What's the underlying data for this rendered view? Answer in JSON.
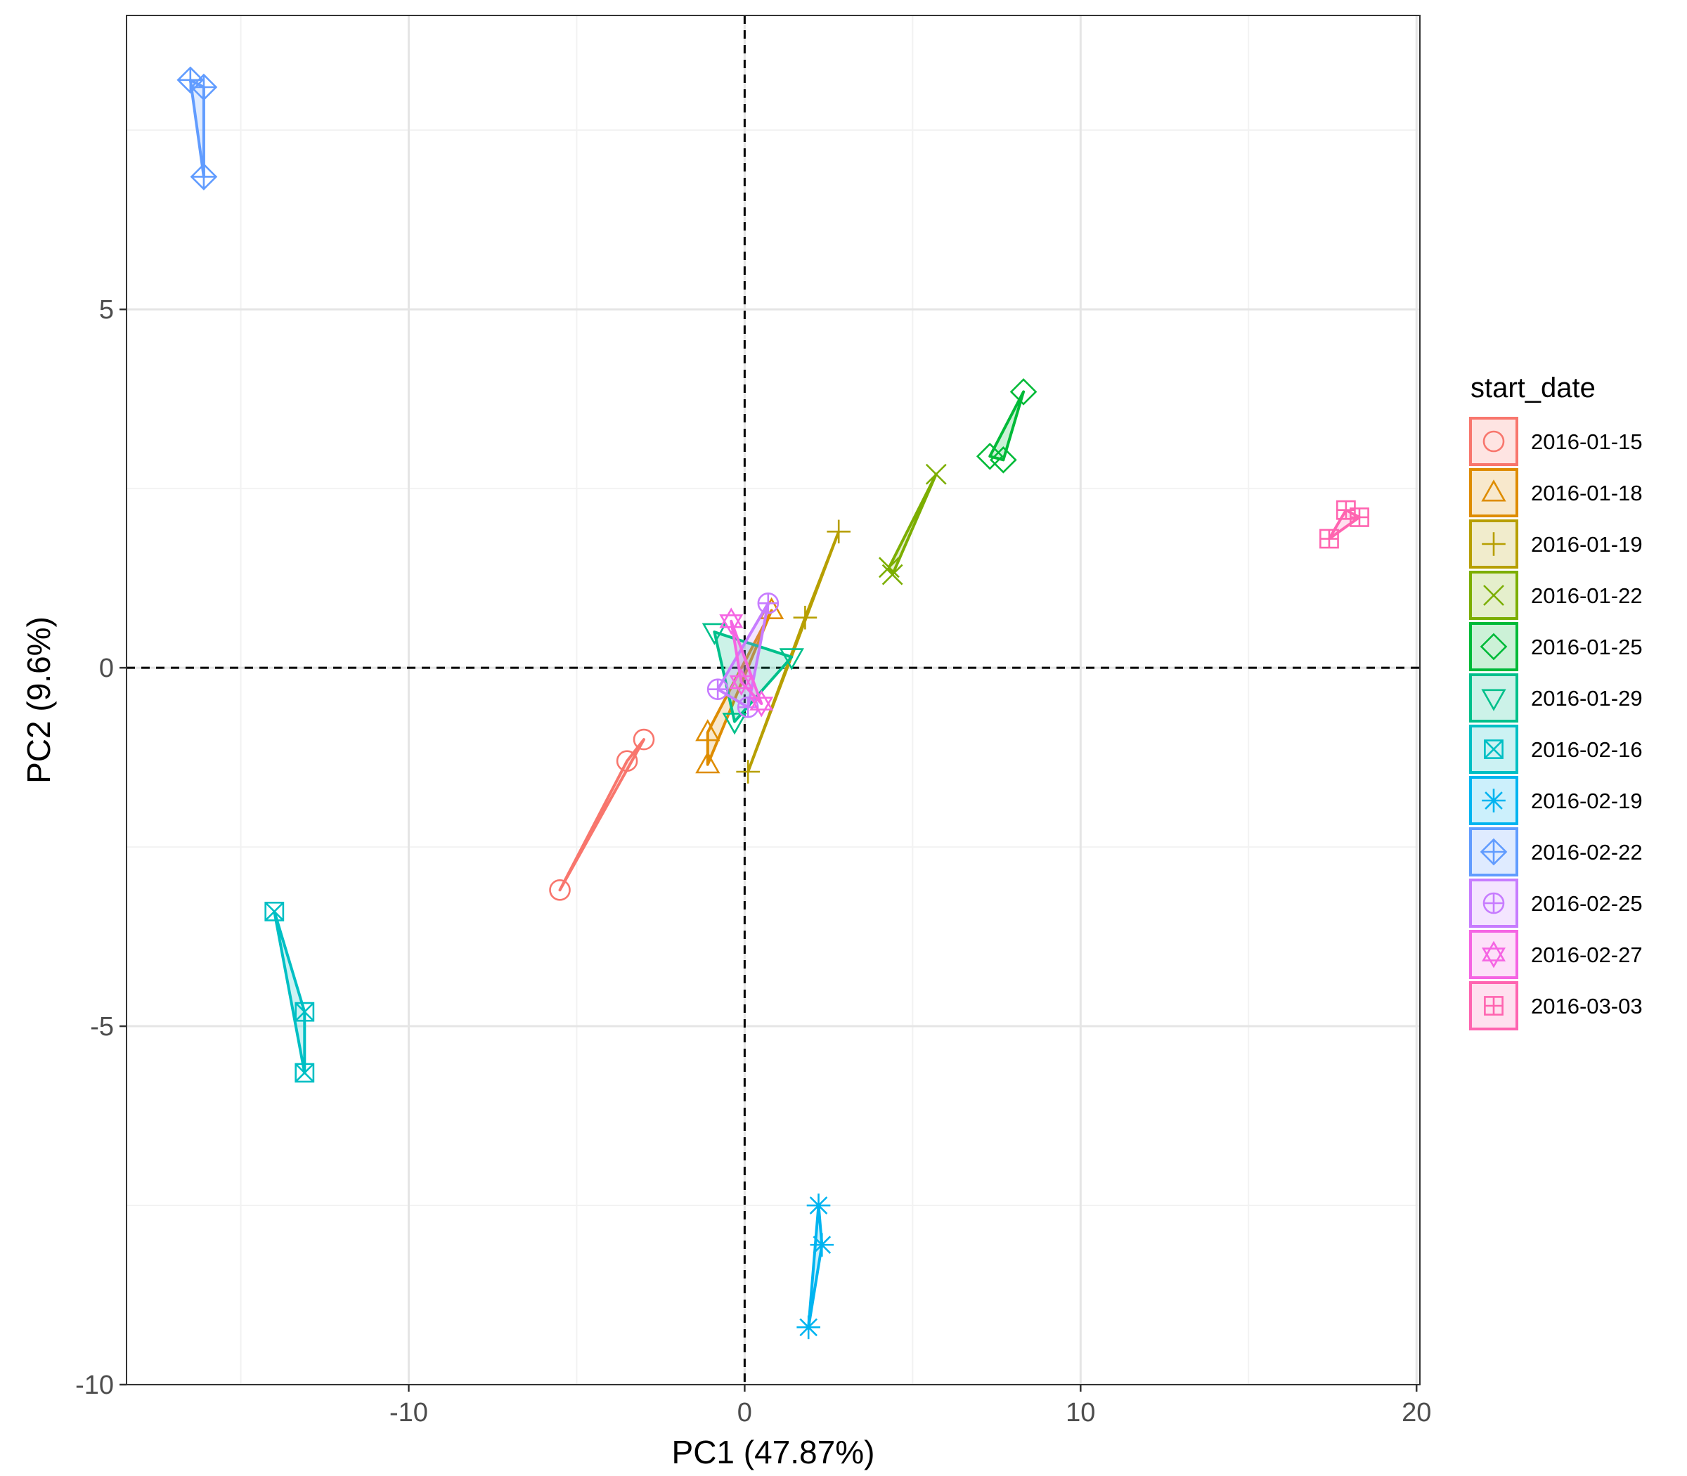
{
  "chart_data": {
    "type": "scatter",
    "title": "",
    "xlabel": "PC1 (47.87%)",
    "ylabel": "PC2 (9.6%)",
    "xlim": [
      -18.4,
      20.1
    ],
    "ylim": [
      -10.0,
      9.1
    ],
    "x_ticks": [
      -10,
      0,
      10,
      20
    ],
    "y_ticks": [
      -10,
      -5,
      0,
      5
    ],
    "grid": true,
    "reference_lines": {
      "x": 0,
      "y": 0,
      "style": "dashed"
    },
    "legend": {
      "title": "start_date",
      "position": "right"
    },
    "series": [
      {
        "name": "2016-01-15",
        "color": "#F8766D",
        "shape": "circle",
        "points": [
          [
            -3.0,
            -1.0
          ],
          [
            -3.5,
            -1.3
          ],
          [
            -5.5,
            -3.1
          ]
        ]
      },
      {
        "name": "2016-01-18",
        "color": "#DE8C00",
        "shape": "triangle-up",
        "points": [
          [
            0.8,
            0.8
          ],
          [
            -1.1,
            -0.9
          ],
          [
            -1.1,
            -1.35
          ]
        ]
      },
      {
        "name": "2016-01-19",
        "color": "#B79F00",
        "shape": "plus",
        "points": [
          [
            2.8,
            1.9
          ],
          [
            1.8,
            0.7
          ],
          [
            0.1,
            -1.45
          ]
        ]
      },
      {
        "name": "2016-01-22",
        "color": "#7CAE00",
        "shape": "cross",
        "points": [
          [
            5.7,
            2.7
          ],
          [
            4.3,
            1.4
          ],
          [
            4.4,
            1.3
          ]
        ]
      },
      {
        "name": "2016-01-25",
        "color": "#00BA38",
        "shape": "diamond",
        "points": [
          [
            8.3,
            3.85
          ],
          [
            7.3,
            2.95
          ],
          [
            7.7,
            2.9
          ]
        ]
      },
      {
        "name": "2016-01-29",
        "color": "#00C08B",
        "shape": "triangle-down",
        "points": [
          [
            -0.9,
            0.5
          ],
          [
            1.4,
            0.15
          ],
          [
            -0.3,
            -0.75
          ]
        ]
      },
      {
        "name": "2016-02-16",
        "color": "#00BFC4",
        "shape": "square-cross",
        "points": [
          [
            -14.0,
            -3.4
          ],
          [
            -13.1,
            -4.8
          ],
          [
            -13.1,
            -5.65
          ]
        ]
      },
      {
        "name": "2016-02-19",
        "color": "#00B4F0",
        "shape": "asterisk",
        "points": [
          [
            2.2,
            -7.5
          ],
          [
            2.3,
            -8.05
          ],
          [
            1.9,
            -9.2
          ]
        ]
      },
      {
        "name": "2016-02-22",
        "color": "#619CFF",
        "shape": "diamond-plus",
        "points": [
          [
            -16.5,
            8.2
          ],
          [
            -16.1,
            8.1
          ],
          [
            -16.1,
            6.85
          ]
        ]
      },
      {
        "name": "2016-02-25",
        "color": "#C77CFF",
        "shape": "circle-plus",
        "points": [
          [
            0.7,
            0.9
          ],
          [
            -0.8,
            -0.3
          ],
          [
            0.1,
            -0.55
          ]
        ]
      },
      {
        "name": "2016-02-27",
        "color": "#F564E3",
        "shape": "star-of-david",
        "points": [
          [
            -0.4,
            0.65
          ],
          [
            0.5,
            -0.5
          ],
          [
            -0.1,
            -0.2
          ]
        ]
      },
      {
        "name": "2016-03-03",
        "color": "#FF64B0",
        "shape": "square-plus",
        "points": [
          [
            18.3,
            2.1
          ],
          [
            17.9,
            2.2
          ],
          [
            17.4,
            1.8
          ]
        ]
      }
    ]
  }
}
